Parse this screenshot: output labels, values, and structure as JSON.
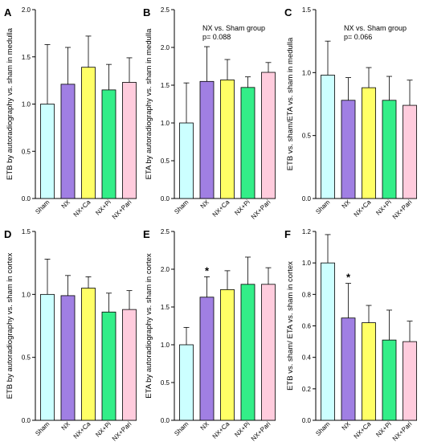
{
  "colors": {
    "bars": [
      "#ccffff",
      "#a07fe3",
      "#ffff66",
      "#33ee88",
      "#ffccdd"
    ],
    "stroke": "#000000"
  },
  "chart_data": [
    {
      "type": "bar",
      "panel": "A",
      "categories": [
        "Sham",
        "NX",
        "NX+Ca",
        "NX+Pi",
        "NX+Pari"
      ],
      "values": [
        1.0,
        1.21,
        1.39,
        1.15,
        1.23
      ],
      "errors": [
        0.63,
        0.39,
        0.33,
        0.27,
        0.26
      ],
      "ylabel": "ETB by autoradiography vs. sham in medulla",
      "ylim": [
        0,
        2.0
      ],
      "yticks": [
        0.0,
        0.5,
        1.0,
        1.5,
        2.0
      ],
      "yticklabels": [
        "0.0",
        "0.5",
        "1.0",
        "1.5",
        "2.0"
      ],
      "annotation_lines": [],
      "significance": [
        "",
        "",
        "",
        "",
        ""
      ]
    },
    {
      "type": "bar",
      "panel": "B",
      "categories": [
        "Sham",
        "NX",
        "NX+Ca",
        "NX+Pi",
        "NX+Pari"
      ],
      "values": [
        1.0,
        1.55,
        1.57,
        1.47,
        1.67
      ],
      "errors": [
        0.53,
        0.46,
        0.27,
        0.14,
        0.13
      ],
      "ylabel": "ETA by autoradiography vs. sham in medulla",
      "ylim": [
        0,
        2.5
      ],
      "yticks": [
        0.0,
        0.5,
        1.0,
        1.5,
        2.0,
        2.5
      ],
      "yticklabels": [
        "0.0",
        "0.5",
        "1.0",
        "1.5",
        "2.0",
        "2.5"
      ],
      "annotation_lines": [
        "NX vs. Sham group",
        "p= 0.088"
      ],
      "significance": [
        "",
        "",
        "",
        "",
        ""
      ]
    },
    {
      "type": "bar",
      "panel": "C",
      "categories": [
        "Sham",
        "NX",
        "NX+Ca",
        "NX+Pi",
        "NX+Pari"
      ],
      "values": [
        0.98,
        0.78,
        0.88,
        0.78,
        0.74
      ],
      "errors": [
        0.27,
        0.18,
        0.16,
        0.19,
        0.2
      ],
      "ylabel": "ETB vs. sham/ETA vs. sham in medulla",
      "ylim": [
        0,
        1.5
      ],
      "yticks": [
        0.0,
        0.5,
        1.0,
        1.5
      ],
      "yticklabels": [
        "0.0",
        "0.5",
        "1.0",
        "1.5"
      ],
      "annotation_lines": [
        "NX vs. Sham group",
        "p= 0.066"
      ],
      "significance": [
        "",
        "",
        "",
        "",
        ""
      ]
    },
    {
      "type": "bar",
      "panel": "D",
      "categories": [
        "Sham",
        "NX",
        "NX+Ca",
        "NX+Pi",
        "NX+Pari"
      ],
      "values": [
        1.0,
        0.99,
        1.05,
        0.86,
        0.88
      ],
      "errors": [
        0.28,
        0.16,
        0.09,
        0.15,
        0.15
      ],
      "ylabel": "ETB by autoradiography vs. sham in cortex",
      "ylim": [
        0,
        1.5
      ],
      "yticks": [
        0.0,
        0.5,
        1.0,
        1.5
      ],
      "yticklabels": [
        "0.0",
        "0.5",
        "1.0",
        "1.5"
      ],
      "annotation_lines": [],
      "significance": [
        "",
        "",
        "",
        "",
        ""
      ]
    },
    {
      "type": "bar",
      "panel": "E",
      "categories": [
        "Sham",
        "NX",
        "NX+Ca",
        "NX+Pi",
        "NX+Pari"
      ],
      "values": [
        1.0,
        1.63,
        1.73,
        1.8,
        1.8
      ],
      "errors": [
        0.23,
        0.27,
        0.25,
        0.36,
        0.22
      ],
      "ylabel": "ETA by autoradiography vs. sham in cortex",
      "ylim": [
        0,
        2.5
      ],
      "yticks": [
        0.0,
        0.5,
        1.0,
        1.5,
        2.0,
        2.5
      ],
      "yticklabels": [
        "0.0",
        "0.5",
        "1.0",
        "1.5",
        "2.0",
        "2.5"
      ],
      "annotation_lines": [],
      "significance": [
        "",
        "*",
        "",
        "",
        ""
      ]
    },
    {
      "type": "bar",
      "panel": "F",
      "categories": [
        "Sham",
        "NX",
        "NX+Ca",
        "NX+Pi",
        "NX+Pari"
      ],
      "values": [
        1.0,
        0.65,
        0.62,
        0.51,
        0.5
      ],
      "errors": [
        0.18,
        0.22,
        0.11,
        0.19,
        0.13
      ],
      "ylabel": "ETB vs. sham/ ETA vs. sham in cortex",
      "ylim": [
        0,
        1.2
      ],
      "yticks": [
        0.0,
        0.2,
        0.4,
        0.6,
        0.8,
        1.0,
        1.2
      ],
      "yticklabels": [
        "0.0",
        "0.2",
        "0.4",
        "0.6",
        "0.8",
        "1.0",
        "1.2"
      ],
      "annotation_lines": [],
      "significance": [
        "",
        "*",
        "",
        "",
        ""
      ]
    }
  ]
}
